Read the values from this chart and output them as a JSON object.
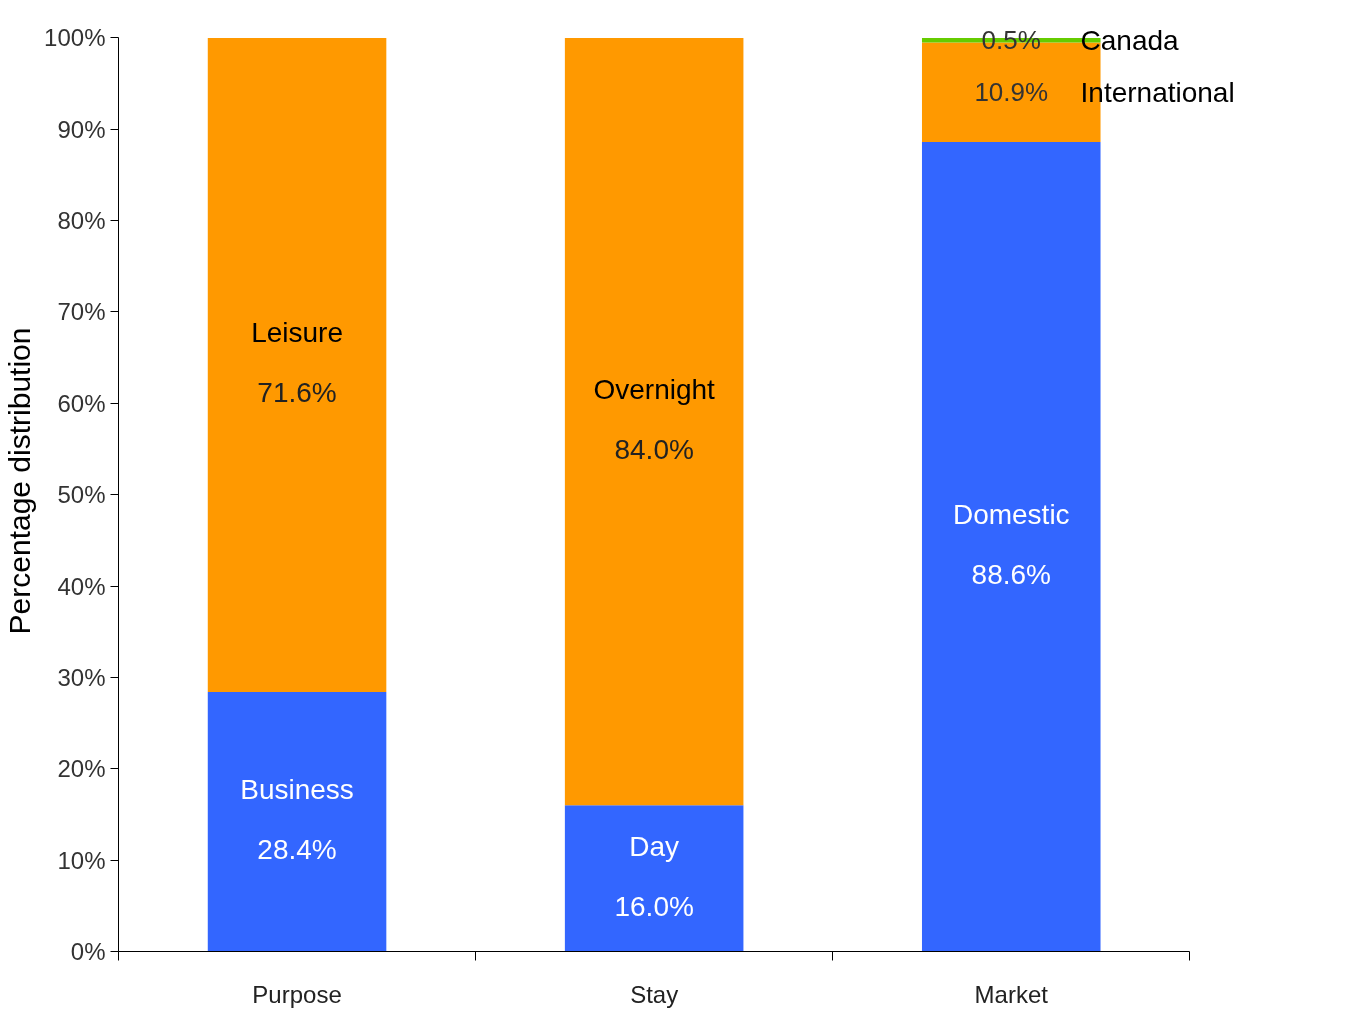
{
  "chart_data": {
    "type": "bar",
    "stacked": true,
    "ylabel": "Percentage distribution",
    "categories": [
      "Purpose",
      "Stay",
      "Market"
    ],
    "series": [
      {
        "color": "#3366ff",
        "values": [
          28.4,
          16.0,
          88.6
        ],
        "value_labels": [
          "28.4%",
          "16.0%",
          "88.6%"
        ]
      },
      {
        "color": "#ff9900",
        "values": [
          71.6,
          84.0,
          10.9
        ],
        "value_labels": [
          "71.6%",
          "84.0%",
          "10.9%"
        ]
      },
      {
        "color": "#66cc00",
        "values": [
          null,
          null,
          0.5
        ],
        "value_labels": [
          null,
          null,
          "0.5%"
        ]
      }
    ],
    "annotations": [
      "Business",
      "Leisure",
      "Day",
      "Overnight",
      "Domestic",
      "International",
      "Canada"
    ],
    "ylim": [
      0,
      100
    ],
    "yticks": [
      {
        "value": 0,
        "label": "0%"
      },
      {
        "value": 10,
        "label": "10%"
      },
      {
        "value": 20,
        "label": "20%"
      },
      {
        "value": 30,
        "label": "30%"
      },
      {
        "value": 40,
        "label": "40%"
      },
      {
        "value": 50,
        "label": "50%"
      },
      {
        "value": 60,
        "label": "60%"
      },
      {
        "value": 70,
        "label": "70%"
      },
      {
        "value": 80,
        "label": "80%"
      },
      {
        "value": 90,
        "label": "90%"
      },
      {
        "value": 100,
        "label": "100%"
      }
    ],
    "grid": false
  }
}
